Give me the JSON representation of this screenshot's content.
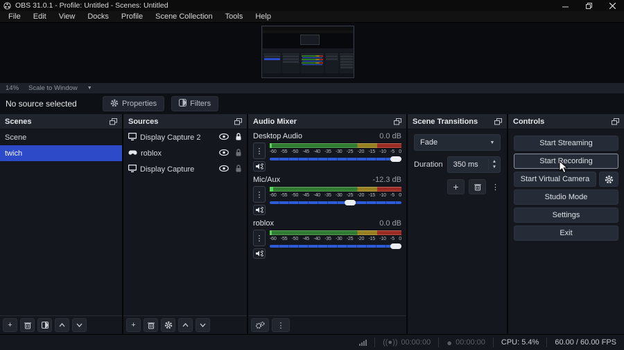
{
  "window": {
    "title": "OBS 31.0.1 - Profile: Untitled - Scenes: Untitled"
  },
  "menu": {
    "items": [
      "File",
      "Edit",
      "View",
      "Docks",
      "Profile",
      "Scene Collection",
      "Tools",
      "Help"
    ]
  },
  "preview": {
    "zoom": "14%",
    "scale_mode": "Scale to Window"
  },
  "source_toolbar": {
    "status": "No source selected",
    "properties_label": "Properties",
    "filters_label": "Filters"
  },
  "scenes": {
    "title": "Scenes",
    "items": [
      {
        "label": "Scene",
        "selected": false
      },
      {
        "label": "twich",
        "selected": true
      }
    ]
  },
  "sources": {
    "title": "Sources",
    "items": [
      {
        "label": "Display Capture 2",
        "icon": "display-icon",
        "visible": true,
        "locked": true
      },
      {
        "label": "roblox",
        "icon": "game-controller-icon",
        "visible": true,
        "locked": false
      },
      {
        "label": "Display Capture",
        "icon": "display-icon",
        "visible": true,
        "locked": false
      }
    ]
  },
  "audio_mixer": {
    "title": "Audio Mixer",
    "scale_ticks": [
      "-60",
      "-55",
      "-50",
      "-45",
      "-40",
      "-35",
      "-30",
      "-25",
      "-20",
      "-15",
      "-10",
      "-5",
      "0"
    ],
    "channels": [
      {
        "name": "Desktop Audio",
        "level": "0.0 dB",
        "slider_pct": 100,
        "active_pct": 1.5
      },
      {
        "name": "Mic/Aux",
        "level": "-12.3 dB",
        "slider_pct": 62,
        "active_pct": 2.5
      },
      {
        "name": "roblox",
        "level": "0.0 dB",
        "slider_pct": 100,
        "active_pct": 1.5
      }
    ]
  },
  "transitions": {
    "title": "Scene Transitions",
    "transition": "Fade",
    "duration_label": "Duration",
    "duration_value": "350 ms"
  },
  "controls": {
    "title": "Controls",
    "buttons": [
      "Start Streaming",
      "Start Recording",
      "Start Virtual Camera",
      "Studio Mode",
      "Settings",
      "Exit"
    ]
  },
  "status_bar": {
    "stream_time": "00:00:00",
    "record_time": "00:00:00",
    "cpu": "CPU: 5.4%",
    "fps": "60.00 / 60.00 FPS"
  },
  "colors": {
    "selection_blue": "#2d4bc8",
    "meter_green": "#2f7c30",
    "meter_yellow": "#96801f",
    "meter_red": "#9c2b23",
    "slider_blue": "#2e5bd7"
  }
}
